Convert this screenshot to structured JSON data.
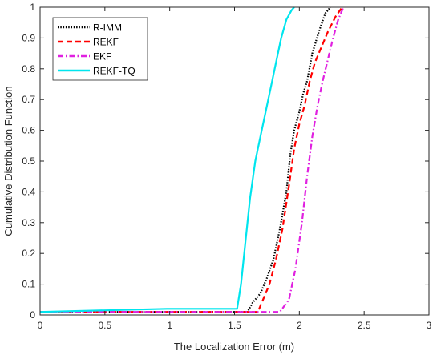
{
  "chart_data": {
    "type": "line",
    "title": "",
    "xlabel": "The Localization Error (m)",
    "ylabel": "Cumulative Distribution Function",
    "xlim": [
      0,
      3
    ],
    "ylim": [
      0,
      1
    ],
    "xticks": [
      0,
      0.5,
      1,
      1.5,
      2,
      2.5,
      3
    ],
    "yticks": [
      0,
      0.1,
      0.2,
      0.3,
      0.4,
      0.5,
      0.6,
      0.7,
      0.8,
      0.9,
      1
    ],
    "xtick_labels": [
      "0",
      "0.5",
      "1",
      "1.5",
      "2",
      "2.5",
      "3"
    ],
    "ytick_labels": [
      "0",
      "0.1",
      "0.2",
      "0.3",
      "0.4",
      "0.5",
      "0.6",
      "0.7",
      "0.8",
      "0.9",
      "1"
    ],
    "grid": false,
    "legend_position": "top-left",
    "series": [
      {
        "name": "R-IMM",
        "color": "#000000",
        "style": "dotted",
        "x": [
          0,
          1.6,
          1.64,
          1.7,
          1.75,
          1.8,
          1.85,
          1.9,
          1.93,
          1.96,
          2.0,
          2.03,
          2.06,
          2.1,
          2.15,
          2.2,
          2.24
        ],
        "y": [
          0.01,
          0.01,
          0.04,
          0.07,
          0.12,
          0.18,
          0.28,
          0.4,
          0.52,
          0.6,
          0.66,
          0.72,
          0.76,
          0.85,
          0.92,
          0.98,
          1.0
        ]
      },
      {
        "name": "REKF",
        "color": "#ff0000",
        "style": "dashed",
        "x": [
          0,
          1.68,
          1.72,
          1.77,
          1.82,
          1.87,
          1.92,
          1.96,
          2.0,
          2.04,
          2.08,
          2.12,
          2.17,
          2.22,
          2.28,
          2.33
        ],
        "y": [
          0.01,
          0.01,
          0.05,
          0.1,
          0.18,
          0.28,
          0.42,
          0.54,
          0.62,
          0.68,
          0.76,
          0.82,
          0.87,
          0.92,
          0.97,
          1.0
        ]
      },
      {
        "name": "EKF",
        "color": "#e020e0",
        "style": "dashdot",
        "x": [
          0,
          1.85,
          1.92,
          1.97,
          2.02,
          2.06,
          2.1,
          2.14,
          2.18,
          2.22,
          2.26,
          2.3,
          2.34
        ],
        "y": [
          0.01,
          0.01,
          0.05,
          0.15,
          0.3,
          0.45,
          0.58,
          0.68,
          0.76,
          0.83,
          0.9,
          0.96,
          1.0
        ]
      },
      {
        "name": "REKF-TQ",
        "color": "#00e5ee",
        "style": "solid",
        "x": [
          0,
          0.98,
          1.52,
          1.55,
          1.58,
          1.62,
          1.66,
          1.7,
          1.74,
          1.78,
          1.82,
          1.86,
          1.9,
          1.94,
          1.96
        ],
        "y": [
          0.01,
          0.02,
          0.02,
          0.1,
          0.22,
          0.38,
          0.5,
          0.58,
          0.66,
          0.74,
          0.82,
          0.9,
          0.96,
          0.99,
          1.0
        ]
      }
    ]
  }
}
